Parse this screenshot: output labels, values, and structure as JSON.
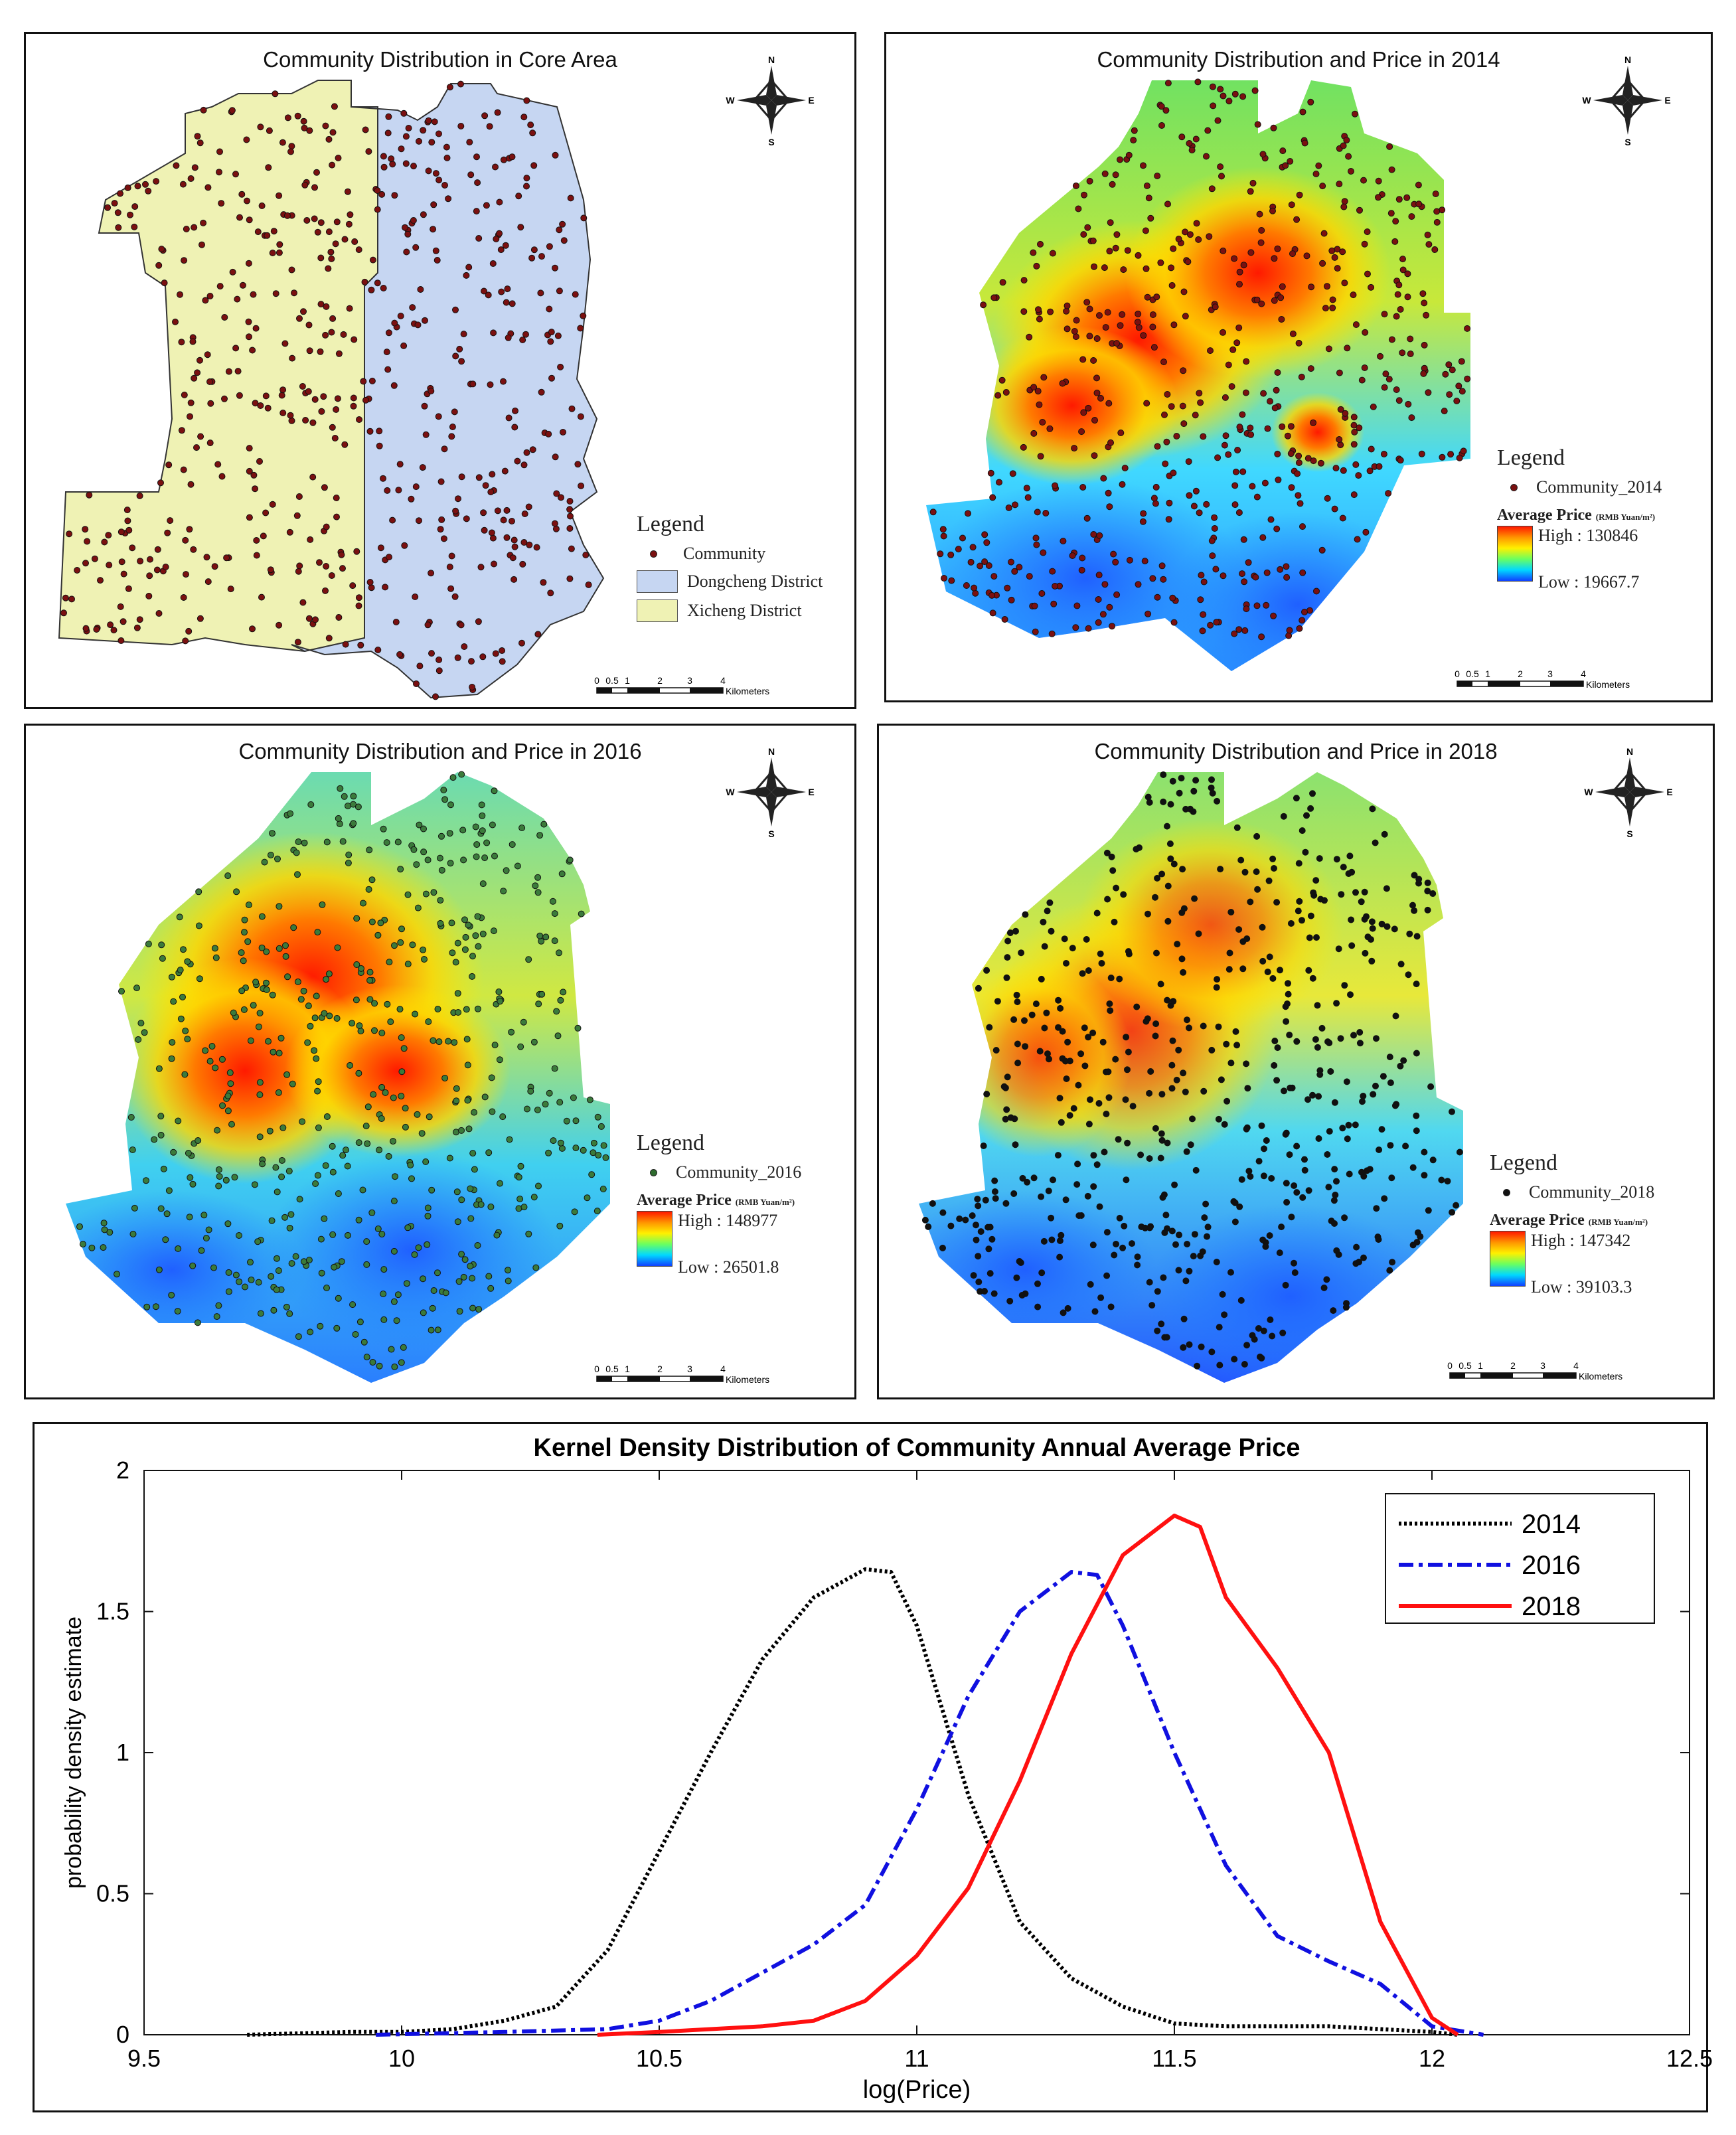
{
  "maps": [
    {
      "title": "Community Distribution in Core Area",
      "legend_title": "Legend",
      "legend_items": [
        {
          "label": "Community",
          "kind": "point",
          "color": "#7a1010"
        },
        {
          "label": "Dongcheng District",
          "kind": "area",
          "color": "#c6d6f2"
        },
        {
          "label": "Xicheng District",
          "kind": "area",
          "color": "#eff2b4"
        }
      ],
      "compass": {
        "n": "N",
        "s": "S",
        "e": "E",
        "w": "W"
      },
      "scale": {
        "ticks": [
          "0",
          "0.5",
          "1",
          "2",
          "3",
          "4"
        ],
        "unit": "Kilometers"
      }
    },
    {
      "title": "Community Distribution and Price in 2014",
      "legend_title": "Legend",
      "point_label": "Community_2014",
      "point_color": "#7a1010",
      "price_title": "Average Price",
      "price_unit": "(RMB Yuan/m²)",
      "high": "High : 130846",
      "low": "Low : 19667.7",
      "compass": {
        "n": "N",
        "s": "S",
        "e": "E",
        "w": "W"
      },
      "scale": {
        "ticks": [
          "0",
          "0.5",
          "1",
          "2",
          "3",
          "4"
        ],
        "unit": "Kilometers"
      }
    },
    {
      "title": "Community Distribution and Price in 2016",
      "legend_title": "Legend",
      "point_label": "Community_2016",
      "point_color": "#2e6b2e",
      "price_title": "Average Price",
      "price_unit": "(RMB Yuan/m²)",
      "high": "High : 148977",
      "low": "Low : 26501.8",
      "compass": {
        "n": "N",
        "s": "S",
        "e": "E",
        "w": "W"
      },
      "scale": {
        "ticks": [
          "0",
          "0.5",
          "1",
          "2",
          "3",
          "4"
        ],
        "unit": "Kilometers"
      }
    },
    {
      "title": "Community Distribution and Price in 2018",
      "legend_title": "Legend",
      "point_label": "Community_2018",
      "point_color": "#111111",
      "price_title": "Average Price",
      "price_unit": "(RMB Yuan/m²)",
      "high": "High : 147342",
      "low": "Low : 39103.3",
      "compass": {
        "n": "N",
        "s": "S",
        "e": "E",
        "w": "W"
      },
      "scale": {
        "ticks": [
          "0",
          "0.5",
          "1",
          "2",
          "3",
          "4"
        ],
        "unit": "Kilometers"
      }
    }
  ],
  "chart_data": {
    "type": "line",
    "title": "Kernel Density Distribution of Community Annual Average Price",
    "xlabel": "log(Price)",
    "ylabel": "probability density estimate",
    "xlim": [
      9.5,
      12.5
    ],
    "ylim": [
      0,
      2
    ],
    "xticks": [
      "9.5",
      "10",
      "10.5",
      "11",
      "11.5",
      "12",
      "12.5"
    ],
    "yticks": [
      "0",
      "0.5",
      "1",
      "1.5",
      "2"
    ],
    "legend_position": "top-right",
    "series": [
      {
        "name": "2014",
        "color": "#000000",
        "style": "dotted",
        "x": [
          9.7,
          9.9,
          10.0,
          10.1,
          10.2,
          10.3,
          10.4,
          10.5,
          10.6,
          10.7,
          10.8,
          10.9,
          10.95,
          11.0,
          11.1,
          11.2,
          11.3,
          11.4,
          11.5,
          11.6,
          11.7,
          11.8,
          11.9,
          12.0,
          12.05
        ],
        "y": [
          0.0,
          0.01,
          0.01,
          0.02,
          0.05,
          0.1,
          0.3,
          0.65,
          1.0,
          1.33,
          1.55,
          1.65,
          1.64,
          1.45,
          0.85,
          0.4,
          0.2,
          0.1,
          0.04,
          0.03,
          0.03,
          0.03,
          0.02,
          0.01,
          0.0
        ]
      },
      {
        "name": "2016",
        "color": "#1010e0",
        "style": "dashdot",
        "x": [
          9.95,
          10.2,
          10.4,
          10.5,
          10.6,
          10.7,
          10.8,
          10.9,
          11.0,
          11.1,
          11.2,
          11.3,
          11.35,
          11.4,
          11.5,
          11.6,
          11.7,
          11.8,
          11.9,
          12.0,
          12.1
        ],
        "y": [
          0.0,
          0.01,
          0.02,
          0.05,
          0.12,
          0.22,
          0.32,
          0.46,
          0.8,
          1.2,
          1.5,
          1.64,
          1.63,
          1.45,
          1.0,
          0.6,
          0.35,
          0.26,
          0.18,
          0.03,
          0.0
        ]
      },
      {
        "name": "2018",
        "color": "#ff1010",
        "style": "solid",
        "x": [
          10.38,
          10.5,
          10.6,
          10.7,
          10.8,
          10.9,
          11.0,
          11.1,
          11.2,
          11.3,
          11.4,
          11.5,
          11.55,
          11.6,
          11.7,
          11.8,
          11.9,
          12.0,
          12.05
        ],
        "y": [
          0.0,
          0.01,
          0.02,
          0.03,
          0.05,
          0.12,
          0.28,
          0.52,
          0.9,
          1.35,
          1.7,
          1.84,
          1.8,
          1.55,
          1.3,
          1.0,
          0.4,
          0.06,
          0.0
        ]
      }
    ]
  }
}
